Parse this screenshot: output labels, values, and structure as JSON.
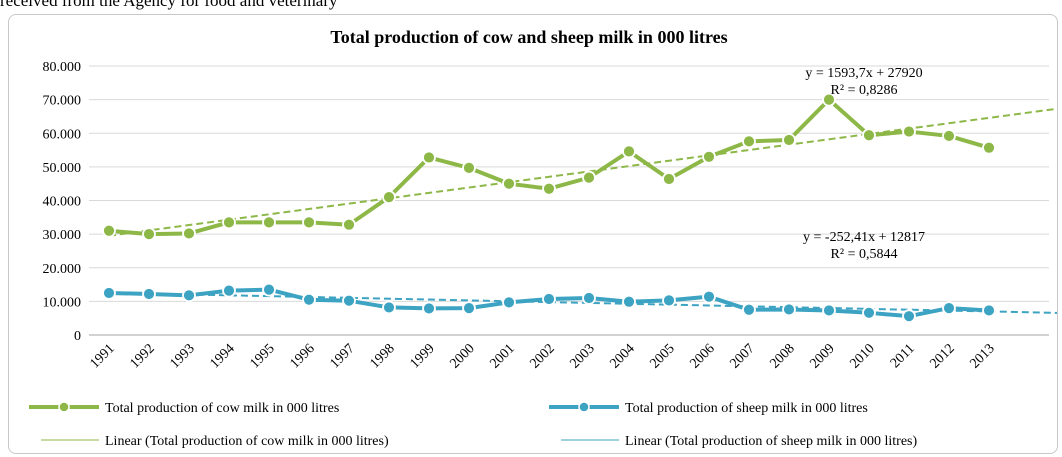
{
  "page": {
    "caption": "received from the Agency for food and veterinary"
  },
  "colors": {
    "cow": "#8DB848",
    "sheep": "#3DA3C3",
    "grid": "#d9d9d9"
  },
  "chart_data": {
    "type": "line",
    "title": "Total production of cow and sheep milk in 000 litres",
    "x": [
      "1991",
      "1992",
      "1993",
      "1994",
      "1995",
      "1996",
      "1997",
      "1998",
      "1999",
      "2000",
      "2001",
      "2002",
      "2003",
      "2004",
      "2005",
      "2006",
      "2007",
      "2008",
      "2009",
      "2010",
      "2011",
      "2012",
      "2013"
    ],
    "ylim": [
      0,
      80000
    ],
    "yticks": [
      0,
      10000,
      20000,
      30000,
      40000,
      50000,
      60000,
      70000,
      80000
    ],
    "ytick_labels": [
      "0",
      "10.000",
      "20.000",
      "30.000",
      "40.000",
      "50.000",
      "60.000",
      "70.000",
      "80.000"
    ],
    "grid": true,
    "legend_position": "bottom",
    "series": [
      {
        "name": "Total production of cow milk in 000 litres",
        "values": [
          31000,
          30000,
          30200,
          33500,
          33500,
          33500,
          32800,
          41000,
          52800,
          49700,
          45000,
          43500,
          46800,
          54600,
          46400,
          53000,
          57600,
          58000,
          70000,
          59400,
          60500,
          59200,
          55700
        ]
      },
      {
        "name": "Total production of sheep milk in 000 litres",
        "values": [
          12500,
          12200,
          11800,
          13200,
          13500,
          10500,
          10200,
          8200,
          7900,
          8000,
          9700,
          10700,
          11000,
          9900,
          10300,
          11400,
          7500,
          7600,
          7300,
          6600,
          5600,
          8000,
          7300
        ]
      }
    ],
    "trendlines": [
      {
        "name": "Linear (Total production of cow milk in 000 litres)",
        "slope": 1593.7,
        "intercept": 27920,
        "x_end_index": 25,
        "equation": "y = 1593,7x + 27920",
        "r2": "R² = 0,8286"
      },
      {
        "name": "Linear (Total production of sheep milk in 000 litres)",
        "slope": -252.41,
        "intercept": 12817,
        "x_end_index": 25,
        "equation": "y = -252,41x + 12817",
        "r2": "R² = 0,5844"
      }
    ]
  }
}
